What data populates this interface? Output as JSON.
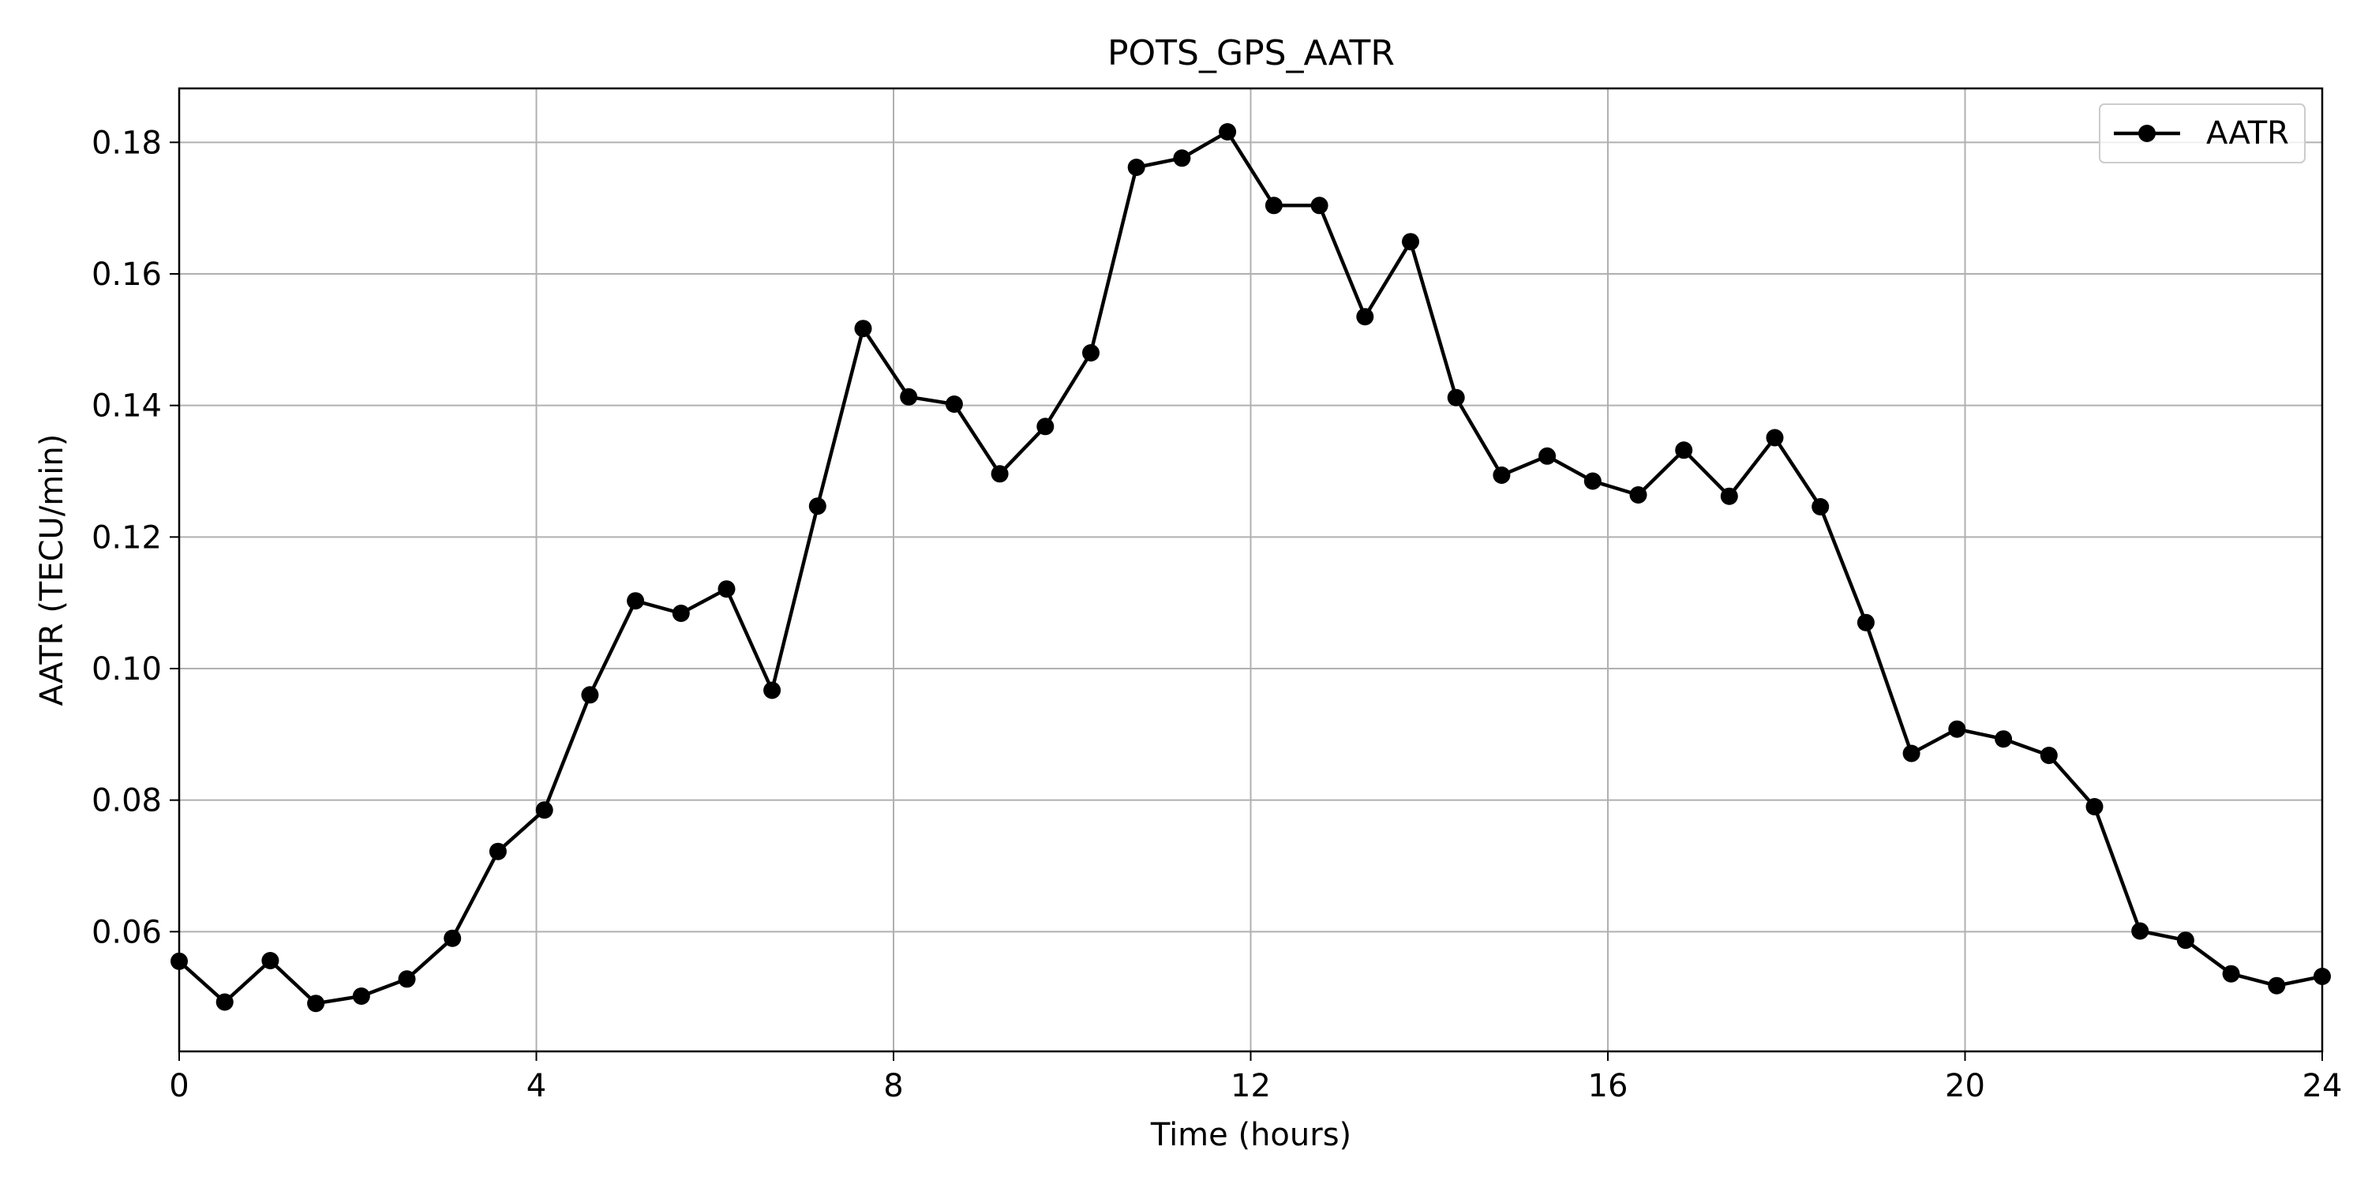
{
  "chart_data": {
    "type": "line",
    "title": "POTS_GPS_AATR",
    "xlabel": "Time (hours)",
    "ylabel": "AATR (TECU/min)",
    "xlim": [
      0,
      24
    ],
    "ylim": [
      0.0418,
      0.1882
    ],
    "xticks": [
      0,
      4,
      8,
      12,
      16,
      20,
      24
    ],
    "yticks": [
      0.06,
      0.08,
      0.1,
      0.12,
      0.14,
      0.16,
      0.18
    ],
    "ytick_labels": [
      "0.06",
      "0.08",
      "0.10",
      "0.12",
      "0.14",
      "0.16",
      "0.18"
    ],
    "grid": true,
    "legend": {
      "placement": "top-right",
      "entries": [
        "AATR"
      ]
    },
    "colors": {
      "line": "#000000",
      "grid": "#b0b0b0",
      "axes": "#000000"
    },
    "series": [
      {
        "name": "AATR",
        "x": [
          0.0,
          0.51,
          1.02,
          1.53,
          2.04,
          2.55,
          3.06,
          3.57,
          4.09,
          4.6,
          5.11,
          5.62,
          6.13,
          6.64,
          7.15,
          7.66,
          8.17,
          8.68,
          9.19,
          9.7,
          10.21,
          10.72,
          11.23,
          11.74,
          12.26,
          12.77,
          13.28,
          13.79,
          14.3,
          14.81,
          15.32,
          15.83,
          16.34,
          16.85,
          17.36,
          17.87,
          18.38,
          18.89,
          19.4,
          19.91,
          20.43,
          20.94,
          21.45,
          21.96,
          22.47,
          22.98,
          23.49,
          24.0
        ],
        "y": [
          0.0555,
          0.0493,
          0.0556,
          0.0491,
          0.0502,
          0.0528,
          0.059,
          0.0722,
          0.0785,
          0.096,
          0.1103,
          0.1084,
          0.1121,
          0.0967,
          0.1247,
          0.1517,
          0.1413,
          0.1402,
          0.1296,
          0.1368,
          0.148,
          0.1762,
          0.1776,
          0.1816,
          0.1704,
          0.1704,
          0.1535,
          0.1649,
          0.1412,
          0.1294,
          0.1323,
          0.1285,
          0.1264,
          0.1332,
          0.1262,
          0.1351,
          0.1246,
          0.107,
          0.0871,
          0.0908,
          0.0893,
          0.0868,
          0.079,
          0.0601,
          0.0587,
          0.0536,
          0.0518,
          0.0532
        ]
      }
    ]
  }
}
